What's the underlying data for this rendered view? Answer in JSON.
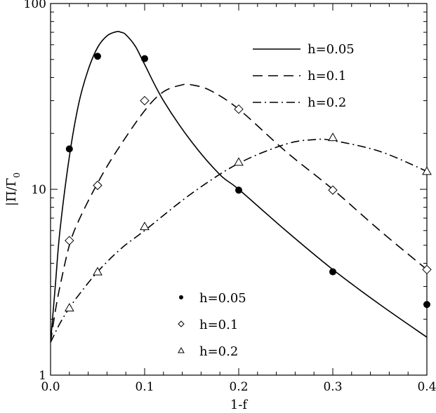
{
  "chart_data": {
    "type": "line",
    "xlabel": "1-f",
    "ylabel": "|Π/Γ₀",
    "ylabel_main": "|Π/Γ",
    "ylabel_sub": "0",
    "xlim": [
      0.0,
      0.4
    ],
    "ylim": [
      1,
      100
    ],
    "yscale": "log",
    "x_ticks": [
      0.0,
      0.1,
      0.2,
      0.3,
      0.4
    ],
    "x_tick_labels": [
      "0.0",
      "0.1",
      "0.2",
      "0.3",
      "0.4"
    ],
    "y_ticks": [
      1,
      10,
      100
    ],
    "y_tick_labels": [
      "1",
      "10",
      "100"
    ],
    "grid": false,
    "series": [
      {
        "name": "h=0.05",
        "kind": "curve",
        "style": "solid",
        "x": [
          0.0,
          0.005,
          0.01,
          0.02,
          0.03,
          0.04,
          0.05,
          0.06,
          0.07,
          0.075,
          0.08,
          0.09,
          0.1,
          0.12,
          0.15,
          0.18,
          0.2,
          0.25,
          0.3,
          0.35,
          0.4
        ],
        "y": [
          1.5,
          3.0,
          6.0,
          15.0,
          29.0,
          44.0,
          58.0,
          67.0,
          70.5,
          70.0,
          68.0,
          59.0,
          47.0,
          30.0,
          18.0,
          12.0,
          10.0,
          6.0,
          3.7,
          2.4,
          1.6
        ]
      },
      {
        "name": "h=0.1",
        "kind": "curve",
        "style": "dashed",
        "x": [
          0.0,
          0.005,
          0.01,
          0.02,
          0.03,
          0.05,
          0.07,
          0.1,
          0.12,
          0.14,
          0.15,
          0.17,
          0.2,
          0.25,
          0.3,
          0.35,
          0.4
        ],
        "y": [
          1.5,
          2.2,
          3.0,
          5.0,
          6.8,
          10.8,
          16.0,
          26.5,
          33.5,
          36.5,
          36.5,
          34.0,
          27.0,
          16.0,
          10.0,
          6.0,
          3.7
        ]
      },
      {
        "name": "h=0.2",
        "kind": "curve",
        "style": "dashdot",
        "x": [
          0.0,
          0.01,
          0.02,
          0.03,
          0.05,
          0.075,
          0.1,
          0.15,
          0.2,
          0.25,
          0.28,
          0.3,
          0.35,
          0.4
        ],
        "y": [
          1.5,
          1.9,
          2.3,
          2.7,
          3.6,
          4.8,
          6.0,
          9.5,
          13.8,
          17.5,
          18.5,
          18.3,
          16.0,
          12.5
        ]
      },
      {
        "name": "h=0.05",
        "kind": "points",
        "marker": "filled-circle",
        "x": [
          0.02,
          0.05,
          0.1,
          0.2,
          0.3,
          0.4
        ],
        "y": [
          16.5,
          52.0,
          50.5,
          9.9,
          3.6,
          2.4
        ]
      },
      {
        "name": "h=0.1",
        "kind": "points",
        "marker": "open-diamond",
        "x": [
          0.02,
          0.05,
          0.1,
          0.2,
          0.3,
          0.4
        ],
        "y": [
          5.3,
          10.5,
          30.0,
          27.0,
          9.9,
          3.7
        ]
      },
      {
        "name": "h=0.2",
        "kind": "points",
        "marker": "open-triangle",
        "x": [
          0.02,
          0.05,
          0.1,
          0.2,
          0.3,
          0.4
        ],
        "y": [
          2.3,
          3.6,
          6.3,
          14.0,
          19.0,
          12.5
        ]
      }
    ],
    "legend_lines": {
      "placement": "top-right",
      "entries": [
        {
          "label": "h=0.05",
          "style": "solid"
        },
        {
          "label": "h=0.1",
          "style": "dashed"
        },
        {
          "label": "h=0.2",
          "style": "dashdot"
        }
      ]
    },
    "legend_markers": {
      "placement": "bottom-center",
      "entries": [
        {
          "label": "h=0.05",
          "marker": "filled-circle"
        },
        {
          "label": "h=0.1",
          "marker": "open-diamond"
        },
        {
          "label": "h=0.2",
          "marker": "open-triangle"
        }
      ]
    }
  }
}
